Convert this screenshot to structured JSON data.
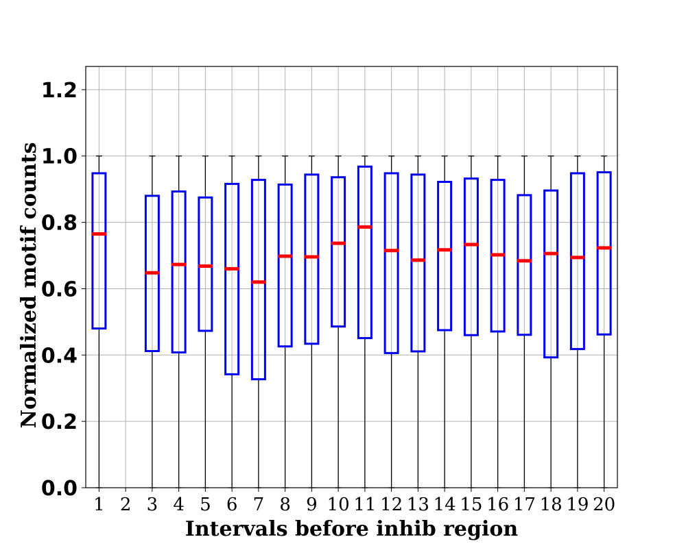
{
  "chart_data": {
    "type": "box",
    "xlabel": "Intervals before inhib region",
    "ylabel": "Normalized motif counts",
    "ylim": [
      0,
      1.27
    ],
    "yticks": [
      0.0,
      0.2,
      0.4,
      0.6,
      0.8,
      1.0,
      1.2
    ],
    "ytick_labels": [
      "0.0",
      "0.2",
      "0.4",
      "0.6",
      "0.8",
      "1.0",
      "1.2"
    ],
    "categories": [
      "1",
      "2",
      "3",
      "4",
      "5",
      "6",
      "7",
      "8",
      "9",
      "10",
      "11",
      "12",
      "13",
      "14",
      "15",
      "16",
      "17",
      "18",
      "19",
      "20"
    ],
    "grid": true,
    "colors": {
      "box": "#0000ee",
      "median": "#ff0000",
      "whisker": "#000000",
      "grid": "#b0b0b0"
    },
    "boxes": [
      {
        "x": "1",
        "whislo": 0.0,
        "q1": 0.48,
        "med": 0.765,
        "q3": 0.948,
        "whishi": 1.0
      },
      {
        "x": "2",
        "empty": true
      },
      {
        "x": "3",
        "whislo": 0.0,
        "q1": 0.412,
        "med": 0.648,
        "q3": 0.88,
        "whishi": 1.0
      },
      {
        "x": "4",
        "whislo": 0.0,
        "q1": 0.408,
        "med": 0.673,
        "q3": 0.893,
        "whishi": 1.0
      },
      {
        "x": "5",
        "whislo": 0.0,
        "q1": 0.473,
        "med": 0.668,
        "q3": 0.875,
        "whishi": 1.0
      },
      {
        "x": "6",
        "whislo": 0.0,
        "q1": 0.342,
        "med": 0.66,
        "q3": 0.916,
        "whishi": 1.0
      },
      {
        "x": "7",
        "whislo": 0.0,
        "q1": 0.327,
        "med": 0.62,
        "q3": 0.928,
        "whishi": 1.0
      },
      {
        "x": "8",
        "whislo": 0.0,
        "q1": 0.426,
        "med": 0.698,
        "q3": 0.914,
        "whishi": 1.0
      },
      {
        "x": "9",
        "whislo": 0.0,
        "q1": 0.434,
        "med": 0.696,
        "q3": 0.944,
        "whishi": 1.0
      },
      {
        "x": "10",
        "whislo": 0.0,
        "q1": 0.486,
        "med": 0.737,
        "q3": 0.936,
        "whishi": 1.0
      },
      {
        "x": "11",
        "whislo": 0.0,
        "q1": 0.451,
        "med": 0.786,
        "q3": 0.968,
        "whishi": 1.0
      },
      {
        "x": "12",
        "whislo": 0.0,
        "q1": 0.406,
        "med": 0.715,
        "q3": 0.948,
        "whishi": 1.0
      },
      {
        "x": "13",
        "whislo": 0.0,
        "q1": 0.411,
        "med": 0.686,
        "q3": 0.944,
        "whishi": 1.0
      },
      {
        "x": "14",
        "whislo": 0.0,
        "q1": 0.475,
        "med": 0.717,
        "q3": 0.922,
        "whishi": 1.0
      },
      {
        "x": "15",
        "whislo": 0.0,
        "q1": 0.46,
        "med": 0.733,
        "q3": 0.932,
        "whishi": 1.0
      },
      {
        "x": "16",
        "whislo": 0.0,
        "q1": 0.471,
        "med": 0.702,
        "q3": 0.928,
        "whishi": 1.0
      },
      {
        "x": "17",
        "whislo": 0.0,
        "q1": 0.461,
        "med": 0.684,
        "q3": 0.882,
        "whishi": 1.0
      },
      {
        "x": "18",
        "whislo": 0.0,
        "q1": 0.393,
        "med": 0.706,
        "q3": 0.896,
        "whishi": 1.0
      },
      {
        "x": "19",
        "whislo": 0.0,
        "q1": 0.418,
        "med": 0.694,
        "q3": 0.948,
        "whishi": 1.0
      },
      {
        "x": "20",
        "whislo": 0.0,
        "q1": 0.462,
        "med": 0.723,
        "q3": 0.951,
        "whishi": 1.0
      }
    ]
  }
}
